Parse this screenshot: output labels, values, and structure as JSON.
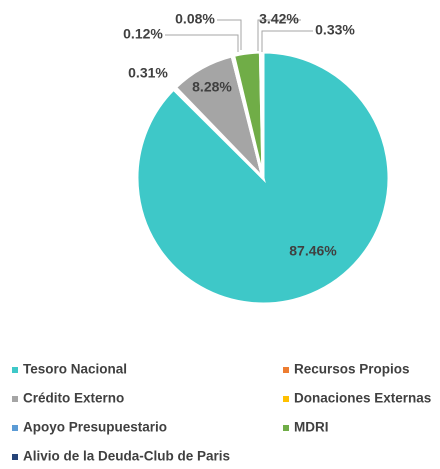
{
  "chart_data": {
    "type": "pie",
    "categories": [
      "Tesoro Nacional",
      "Recursos Propios",
      "Crédito Externo",
      "Donaciones Externas",
      "Apoyo Presupuestario",
      "MDRI",
      "Alivio de la Deuda-Club de Paris"
    ],
    "values": [
      87.46,
      0.31,
      8.28,
      0.12,
      0.08,
      3.42,
      0.33
    ],
    "value_labels": [
      "87.46%",
      "0.31%",
      "8.28%",
      "0.12%",
      "0.08%",
      "3.42%",
      "0.33%"
    ],
    "colors": [
      "#3ec8c8",
      "#ed7d31",
      "#a5a5a5",
      "#ffc000",
      "#5b9bd5",
      "#70ad47",
      "#264478"
    ],
    "legend": "bottom"
  }
}
